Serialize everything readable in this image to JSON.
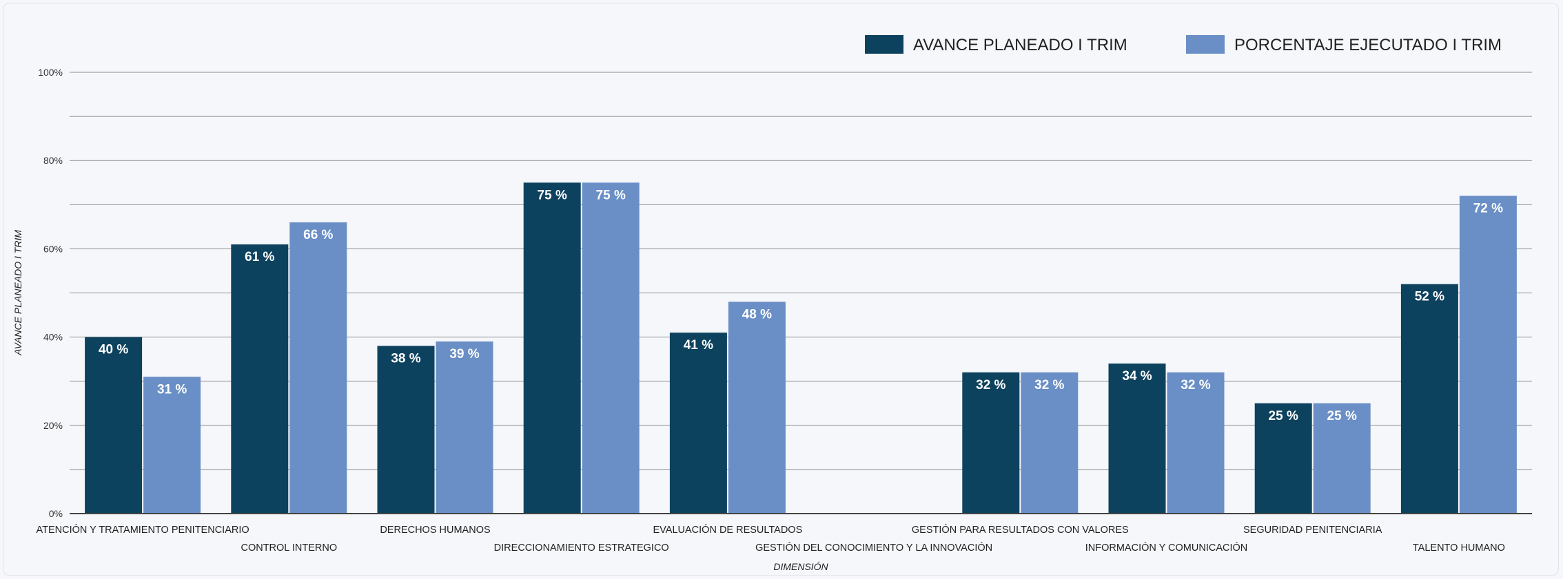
{
  "chart_data": {
    "type": "bar",
    "title": "",
    "xlabel": "DIMENSIÓN",
    "ylabel": "AVANCE PLANEADO I TRIM",
    "ylim": [
      0,
      100
    ],
    "y_ticks": [
      "0%",
      "20%",
      "40%",
      "60%",
      "80%",
      "100%"
    ],
    "y_tick_values": [
      0,
      20,
      40,
      60,
      80,
      100
    ],
    "grid": true,
    "legend_position": "top-right",
    "value_suffix": " %",
    "categories": [
      "ATENCIÓN Y TRATAMIENTO PENITENCIARIO",
      "CONTROL INTERNO",
      "DERECHOS HUMANOS",
      "DIRECCIONAMIENTO ESTRATEGICO",
      "EVALUACIÓN DE RESULTADOS",
      "GESTIÓN DEL CONOCIMIENTO Y LA INNOVACIÓN",
      "GESTIÓN PARA RESULTADOS CON VALORES",
      "INFORMACIÓN Y COMUNICACIÓN",
      "SEGURIDAD PENITENCIARIA",
      "TALENTO HUMANO"
    ],
    "series": [
      {
        "name": "AVANCE PLANEADO I TRIM",
        "color": "#0d425f",
        "values": [
          40,
          61,
          38,
          75,
          41,
          null,
          32,
          34,
          25,
          52
        ],
        "labels": [
          "40",
          "61",
          "38",
          "75",
          "41",
          "",
          "32",
          "34",
          "25",
          "52"
        ]
      },
      {
        "name": "PORCENTAJE EJECUTADO I TRIM",
        "color": "#6a8fc6",
        "values": [
          31,
          66,
          39,
          75,
          48,
          null,
          32,
          32,
          25,
          72
        ],
        "labels": [
          "31",
          "66",
          "39",
          "75",
          "48",
          "",
          "32",
          "32",
          "25",
          "72"
        ]
      }
    ]
  }
}
